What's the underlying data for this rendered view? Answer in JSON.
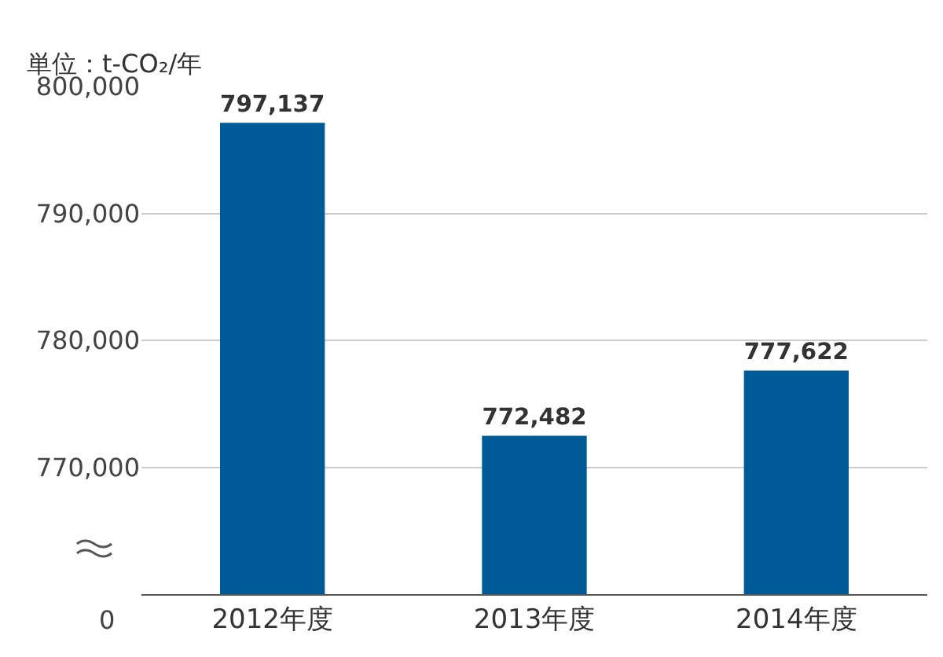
{
  "chart_data": {
    "type": "bar",
    "ylabel": "単位：t-CO₂/年",
    "categories": [
      "2012年度",
      "2013年度",
      "2014年度"
    ],
    "values": [
      797137,
      772482,
      777622
    ],
    "value_labels": [
      "797,137",
      "772,482",
      "777,622"
    ],
    "annotations": [
      "0"
    ],
    "color": "#005a98",
    "ylim": [
      760000,
      800000
    ],
    "yticks": [
      {
        "value": 770000,
        "label": "770,000"
      },
      {
        "value": 780000,
        "label": "780,000"
      },
      {
        "value": 790000,
        "label": "790,000"
      },
      {
        "value": 800000,
        "label": "800,000"
      }
    ],
    "grid": "y"
  }
}
